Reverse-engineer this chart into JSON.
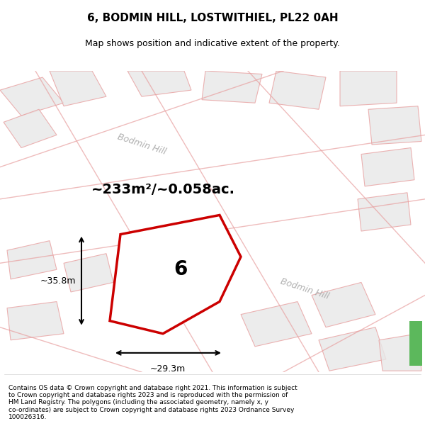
{
  "title": "6, BODMIN HILL, LOSTWITHIEL, PL22 0AH",
  "subtitle": "Map shows position and indicative extent of the property.",
  "footer": "Contains OS data © Crown copyright and database right 2021. This information is subject\nto Crown copyright and database rights 2023 and is reproduced with the permission of\nHM Land Registry. The polygons (including the associated geometry, namely x, y\nco-ordinates) are subject to Crown copyright and database rights 2023 Ordnance Survey\n100026316.",
  "area_text": "~233m²/~0.058ac.",
  "dim_h": "~35.8m",
  "dim_w": "~29.3m",
  "plot_label": "6",
  "bg_color": "#f5f5f5",
  "map_bg": "#f0f0f0",
  "street_color": "#e8a0a0",
  "plot_outline_color": "#cc0000",
  "plot_fill_color": "#ffffff",
  "building_fill": "#e8e8e8",
  "street_label": "Bodmin Hill",
  "green_color": "#5cb85c"
}
